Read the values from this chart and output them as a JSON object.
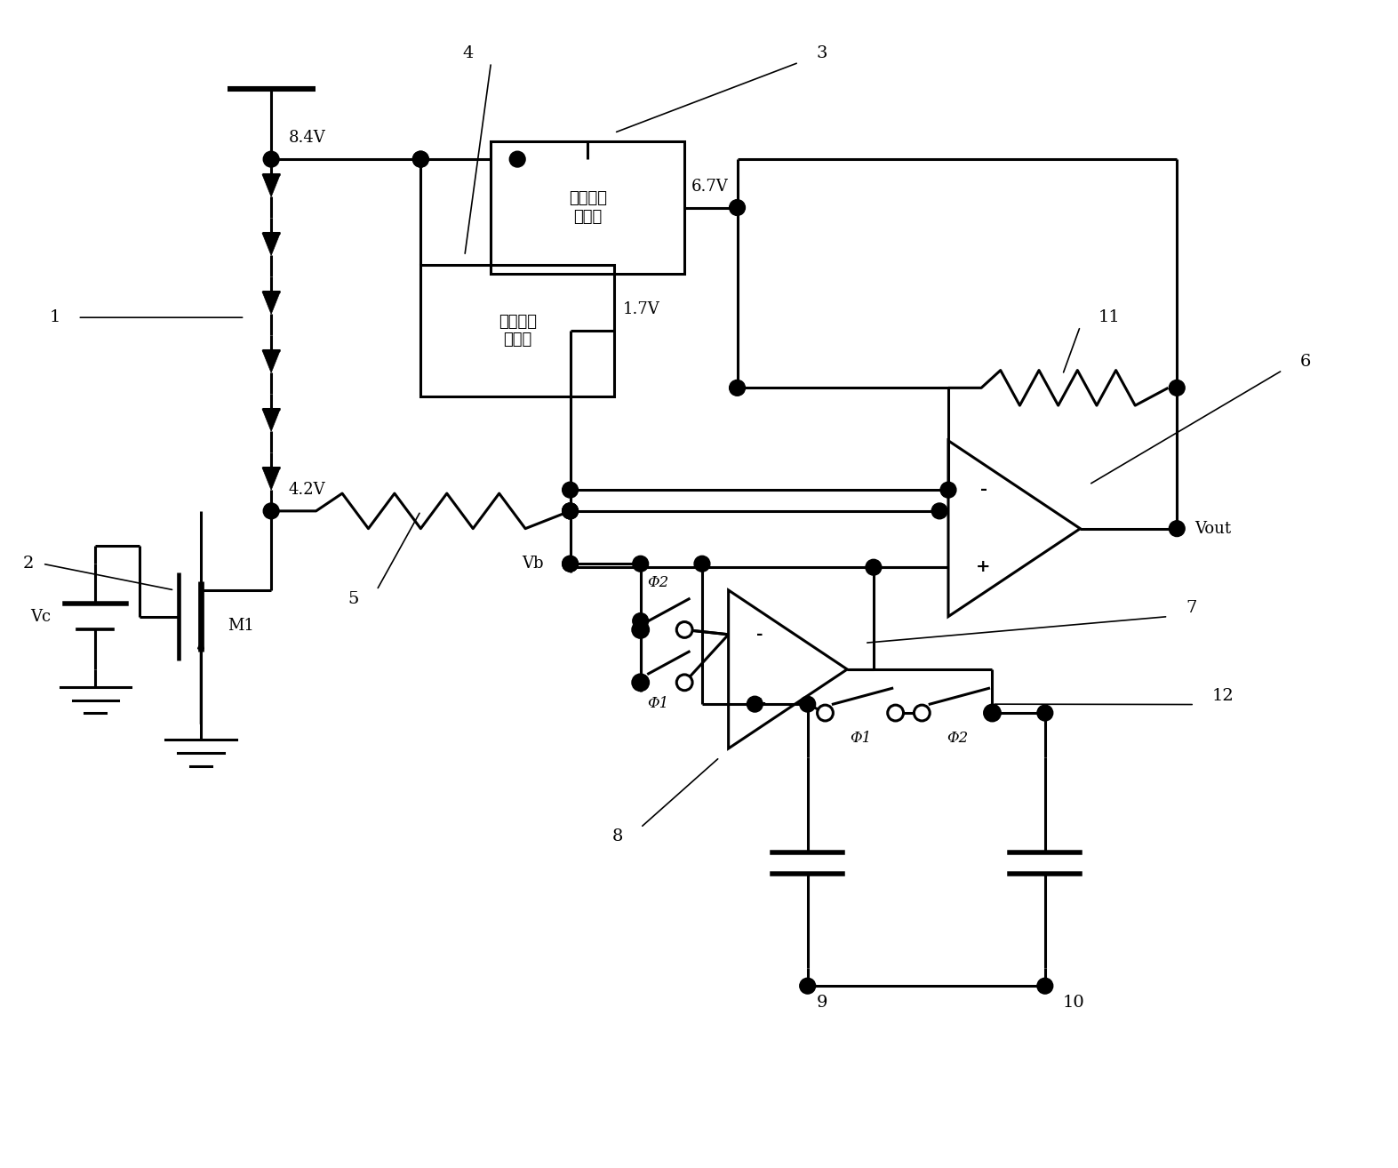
{
  "bg_color": "#ffffff",
  "line_color": "#000000",
  "lw": 2.2,
  "labels": {
    "84V": "8.4V",
    "67V": "6.7V",
    "17V": "1.7V",
    "42V": "4.2V",
    "Vc": "Vc",
    "M1": "M1",
    "Vb": "Vb",
    "Vout": "Vout",
    "reg1": "第一降压\n稳压器",
    "reg2": "第二降压\n稳压器",
    "phi1": "Φ1",
    "phi2": "Φ2",
    "minus": "-",
    "plus": "+"
  }
}
